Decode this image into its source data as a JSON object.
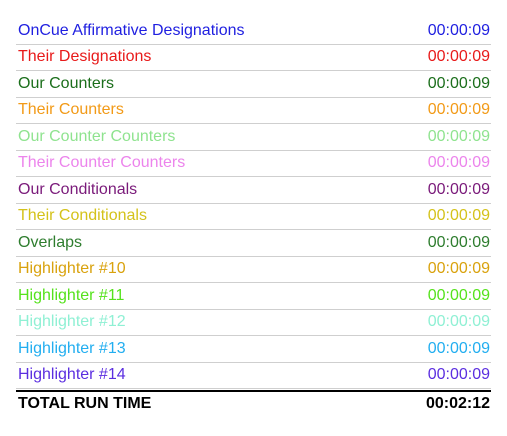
{
  "designations": [
    {
      "label": "OnCue Affirmative Designations",
      "time": "00:00:09",
      "color": "#1f1fe0"
    },
    {
      "label": "Their Designations",
      "time": "00:00:09",
      "color": "#e81a1a"
    },
    {
      "label": "Our Counters",
      "time": "00:00:09",
      "color": "#1b6e1b"
    },
    {
      "label": "Their Counters",
      "time": "00:00:09",
      "color": "#f29a17"
    },
    {
      "label": "Our Counter Counters",
      "time": "00:00:09",
      "color": "#8fe38f"
    },
    {
      "label": "Their Counter Counters",
      "time": "00:00:09",
      "color": "#ec84ec"
    },
    {
      "label": "Our Conditionals",
      "time": "00:00:09",
      "color": "#7a1a7a"
    },
    {
      "label": "Their Conditionals",
      "time": "00:00:09",
      "color": "#d4c21a"
    },
    {
      "label": "Overlaps",
      "time": "00:00:09",
      "color": "#2e7d2e"
    },
    {
      "label": "Highlighter #10",
      "time": "00:00:09",
      "color": "#d9a20d"
    },
    {
      "label": "Highlighter #11",
      "time": "00:00:09",
      "color": "#55e21c"
    },
    {
      "label": "Highlighter #12",
      "time": "00:00:09",
      "color": "#8ff0d4"
    },
    {
      "label": "Highlighter #13",
      "time": "00:00:09",
      "color": "#22aef0"
    },
    {
      "label": "Highlighter #14",
      "time": "00:00:09",
      "color": "#5b2ee0"
    }
  ],
  "total": {
    "label": "TOTAL RUN TIME",
    "time": "00:02:12"
  }
}
